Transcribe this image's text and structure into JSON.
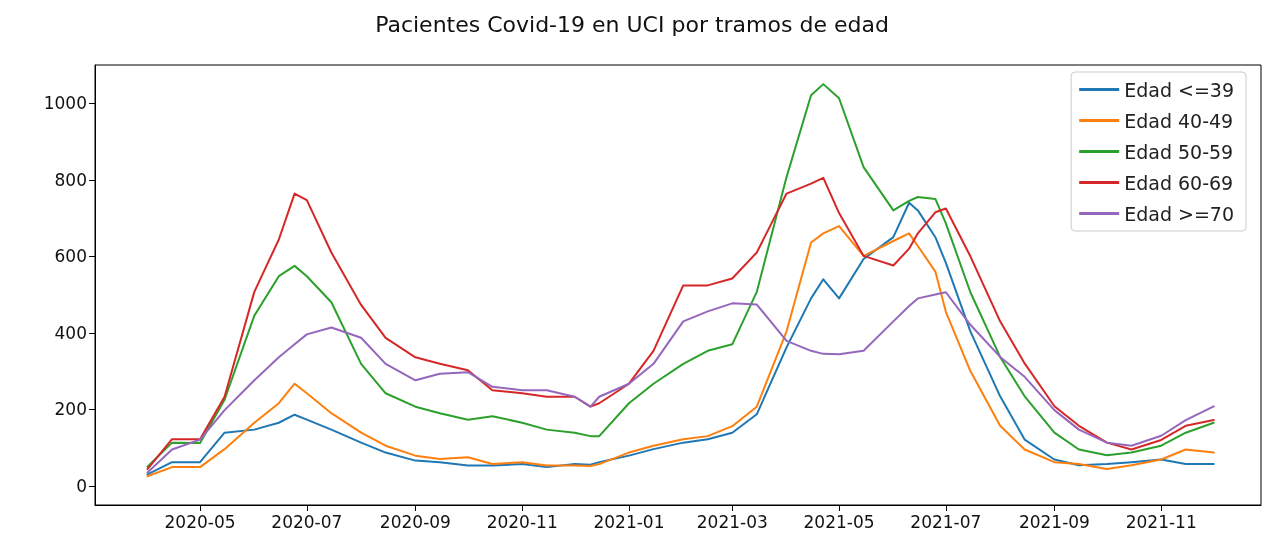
{
  "chart_data": {
    "type": "line",
    "title": "Pacientes Covid-19 en UCI por tramos de edad",
    "x": [
      "2020-04-01",
      "2020-04-15",
      "2020-05-01",
      "2020-05-15",
      "2020-06-01",
      "2020-06-15",
      "2020-06-24",
      "2020-07-01",
      "2020-07-15",
      "2020-08-01",
      "2020-08-15",
      "2020-09-01",
      "2020-09-15",
      "2020-10-01",
      "2020-10-15",
      "2020-11-01",
      "2020-11-15",
      "2020-12-01",
      "2020-12-10",
      "2020-12-15",
      "2021-01-01",
      "2021-01-15",
      "2021-02-01",
      "2021-02-15",
      "2021-03-01",
      "2021-03-15",
      "2021-04-01",
      "2021-04-15",
      "2021-04-22",
      "2021-05-01",
      "2021-05-15",
      "2021-06-01",
      "2021-06-10",
      "2021-06-15",
      "2021-06-25",
      "2021-07-01",
      "2021-07-15",
      "2021-08-01",
      "2021-08-15",
      "2021-09-01",
      "2021-09-15",
      "2021-10-01",
      "2021-10-15",
      "2021-11-01",
      "2021-11-15",
      "2021-12-01"
    ],
    "series": [
      {
        "name": "Edad <=39",
        "color": "#1f77b4",
        "values": [
          30,
          62,
          62,
          139,
          147,
          165,
          186,
          173,
          147,
          113,
          87,
          66,
          62,
          53,
          53,
          57,
          49,
          57,
          55,
          62,
          79,
          96,
          113,
          122,
          139,
          187,
          362,
          490,
          540,
          490,
          593,
          650,
          740,
          720,
          650,
          583,
          404,
          234,
          121,
          69,
          54,
          57,
          62,
          69,
          57,
          57
        ]
      },
      {
        "name": "Edad 40-49",
        "color": "#ff7f0e",
        "values": [
          25,
          49,
          49,
          96,
          165,
          216,
          267,
          242,
          190,
          139,
          105,
          79,
          70,
          75,
          57,
          62,
          53,
          53,
          52,
          57,
          87,
          105,
          122,
          130,
          156,
          207,
          404,
          636,
          660,
          679,
          601,
          640,
          660,
          627,
          560,
          455,
          300,
          157,
          95,
          62,
          57,
          44,
          54,
          69,
          95,
          87
        ]
      },
      {
        "name": "Edad 50-59",
        "color": "#2ca02c",
        "values": [
          50,
          113,
          112,
          225,
          445,
          548,
          575,
          548,
          480,
          319,
          242,
          207,
          190,
          173,
          182,
          165,
          147,
          139,
          130,
          130,
          216,
          267,
          319,
          353,
          370,
          507,
          807,
          1021,
          1050,
          1013,
          833,
          720,
          745,
          755,
          750,
          686,
          506,
          337,
          234,
          139,
          95,
          80,
          87,
          105,
          139,
          165
        ]
      },
      {
        "name": "Edad 60-69",
        "color": "#d62728",
        "values": [
          44,
          122,
          122,
          233,
          507,
          644,
          764,
          747,
          610,
          473,
          387,
          336,
          319,
          302,
          250,
          242,
          233,
          233,
          207,
          216,
          267,
          353,
          524,
          524,
          542,
          610,
          764,
          790,
          805,
          713,
          601,
          576,
          620,
          660,
          715,
          725,
          600,
          430,
          320,
          208,
          157,
          113,
          95,
          120,
          157,
          172
        ]
      },
      {
        "name": "Edad >=70",
        "color": "#9467bd",
        "values": [
          35,
          95,
          121,
          198,
          276,
          336,
          370,
          396,
          414,
          387,
          319,
          276,
          293,
          297,
          259,
          250,
          250,
          233,
          207,
          233,
          267,
          319,
          430,
          456,
          477,
          474,
          379,
          353,
          345,
          344,
          353,
          430,
          470,
          490,
          500,
          506,
          421,
          337,
          285,
          198,
          147,
          113,
          105,
          131,
          172,
          208
        ]
      }
    ],
    "xlim": [
      "2020-03-02",
      "2021-12-28"
    ],
    "xticks": [
      "2020-05",
      "2020-07",
      "2020-09",
      "2020-11",
      "2021-01",
      "2021-03",
      "2021-05",
      "2021-07",
      "2021-09",
      "2021-11"
    ],
    "ylim": [
      -50,
      1100
    ],
    "yticks": [
      0,
      200,
      400,
      600,
      800,
      1000
    ],
    "grid": false,
    "legend": "top right",
    "marker": "none",
    "line_style": "solid"
  }
}
